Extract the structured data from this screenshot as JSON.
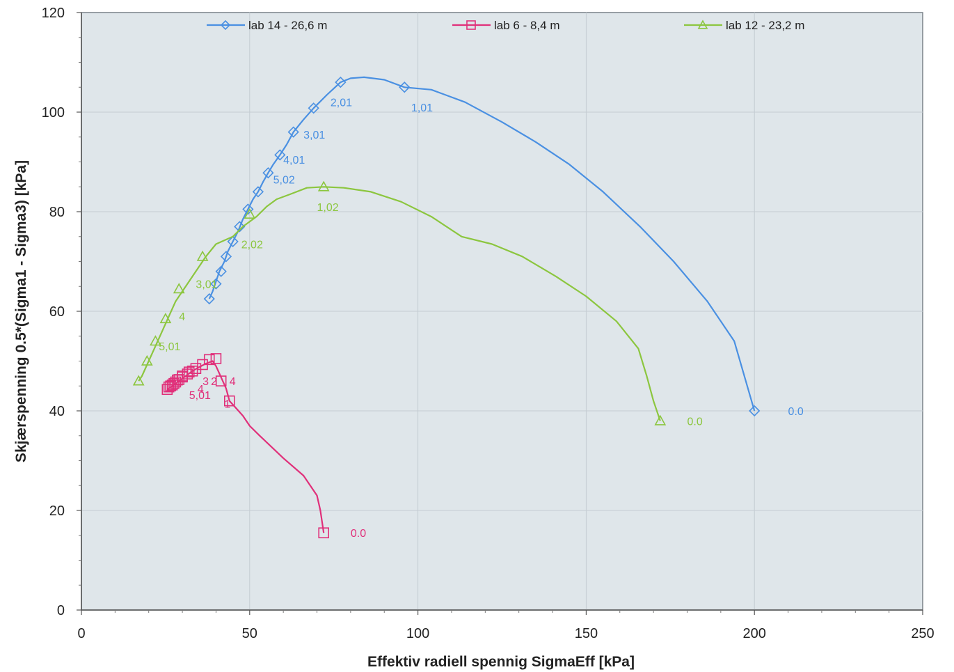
{
  "chart_data": {
    "type": "line",
    "title": "",
    "xlabel": "Effektiv radiell spennig SigmaEff [kPa]",
    "ylabel": "Skjærspenning 0.5*(Sigma1 - Sigma3) [kPa]",
    "xlim": [
      0,
      250
    ],
    "ylim": [
      0,
      120
    ],
    "xticks": [
      0,
      50,
      100,
      150,
      200,
      250
    ],
    "yticks": [
      0,
      20,
      40,
      60,
      80,
      100,
      120
    ],
    "xtick_labels": [
      "0",
      "50",
      "100",
      "150",
      "200",
      "250"
    ],
    "ytick_labels": [
      "0",
      "20",
      "40",
      "60",
      "80",
      "100",
      "120"
    ],
    "grid": true,
    "legend": "top",
    "plot_background": "#dfe6ea",
    "series": [
      {
        "name": "lab 14 - 26,6 m",
        "color": "#4a90e2",
        "marker": "diamond",
        "line": [
          [
            200,
            40
          ],
          [
            194,
            54
          ],
          [
            186,
            62
          ],
          [
            176,
            70
          ],
          [
            166,
            77
          ],
          [
            155,
            84
          ],
          [
            145,
            89.5
          ],
          [
            135,
            94
          ],
          [
            125,
            98
          ],
          [
            114,
            102
          ],
          [
            104,
            104.5
          ],
          [
            96,
            105
          ],
          [
            90,
            106.5
          ],
          [
            84,
            107
          ],
          [
            80,
            106.8
          ],
          [
            77,
            106
          ],
          [
            73,
            103.5
          ],
          [
            69,
            100.8
          ],
          [
            66,
            98.5
          ],
          [
            63,
            96
          ],
          [
            61,
            93.5
          ],
          [
            59,
            91.4
          ],
          [
            57,
            89.5
          ],
          [
            55.5,
            87.8
          ],
          [
            54,
            86
          ],
          [
            52.5,
            84
          ],
          [
            51,
            82.5
          ],
          [
            49.5,
            80.5
          ],
          [
            48,
            78.5
          ],
          [
            46.5,
            76
          ],
          [
            45,
            74
          ],
          [
            43.5,
            72
          ],
          [
            42.5,
            70
          ],
          [
            41,
            68
          ],
          [
            40,
            66
          ],
          [
            39,
            64
          ],
          [
            38,
            62.5
          ]
        ],
        "markers": [
          [
            200,
            40
          ],
          [
            96,
            105
          ],
          [
            77,
            106
          ],
          [
            69,
            100.8
          ],
          [
            63,
            96
          ],
          [
            59,
            91.4
          ],
          [
            55.5,
            87.8
          ],
          [
            52.5,
            84
          ],
          [
            49.5,
            80.5
          ],
          [
            47,
            77
          ],
          [
            45,
            74
          ],
          [
            43,
            71
          ],
          [
            41.5,
            68
          ],
          [
            40,
            65.5
          ],
          [
            38,
            62.5
          ]
        ],
        "labels": [
          {
            "text": "0.0",
            "x": 210,
            "y": 40
          },
          {
            "text": "1,01",
            "x": 98,
            "y": 101
          },
          {
            "text": "2,01",
            "x": 74,
            "y": 102
          },
          {
            "text": "3,01",
            "x": 66,
            "y": 95.5
          },
          {
            "text": "4,01",
            "x": 60,
            "y": 90.5
          },
          {
            "text": "5,02",
            "x": 57,
            "y": 86.5
          }
        ]
      },
      {
        "name": "lab 6 - 8,4 m",
        "color": "#e0307a",
        "marker": "square",
        "line": [
          [
            72,
            15.5
          ],
          [
            71,
            20
          ],
          [
            70,
            23
          ],
          [
            66,
            27
          ],
          [
            60,
            30.5
          ],
          [
            53,
            35
          ],
          [
            50,
            37
          ],
          [
            48,
            39
          ],
          [
            46,
            40.5
          ],
          [
            44,
            42
          ],
          [
            43,
            44.5
          ],
          [
            42,
            46
          ],
          [
            41,
            47.5
          ],
          [
            40,
            49
          ],
          [
            39,
            50
          ],
          [
            37,
            49.5
          ],
          [
            35,
            48.8
          ],
          [
            33,
            48
          ],
          [
            31,
            47
          ],
          [
            29,
            46
          ],
          [
            27,
            45
          ],
          [
            26,
            44.5
          ],
          [
            25.5,
            44.2
          ]
        ],
        "markers": [
          [
            72,
            15.5
          ],
          [
            44,
            42
          ],
          [
            41.5,
            46
          ],
          [
            40,
            50.5
          ],
          [
            38,
            50.3
          ],
          [
            36,
            49.3
          ],
          [
            34,
            48.5
          ],
          [
            32,
            47.8
          ],
          [
            30,
            47
          ],
          [
            28.5,
            46.2
          ],
          [
            27.5,
            45.5
          ],
          [
            26.5,
            45
          ],
          [
            25.5,
            44.3
          ],
          [
            26,
            44.8
          ],
          [
            27,
            45.2
          ],
          [
            28,
            45.8
          ],
          [
            29,
            46.3
          ],
          [
            30,
            46.8
          ],
          [
            31.5,
            47.4
          ],
          [
            33,
            48
          ]
        ],
        "labels": [
          {
            "text": "0.0",
            "x": 80,
            "y": 15.5
          },
          {
            "text": "5,01",
            "x": 32,
            "y": 43.2
          },
          {
            "text": "4",
            "x": 34.5,
            "y": 44.5
          },
          {
            "text": "3",
            "x": 36,
            "y": 46
          },
          {
            "text": "2",
            "x": 38.5,
            "y": 46
          },
          {
            "text": "4",
            "x": 44,
            "y": 46
          },
          {
            "text": "1",
            "x": 42.5,
            "y": 41.5
          }
        ]
      },
      {
        "name": "lab 12 - 23,2 m",
        "color": "#8cc63f",
        "marker": "triangle",
        "line": [
          [
            172,
            38
          ],
          [
            170,
            42
          ],
          [
            168,
            47
          ],
          [
            165.5,
            52.5
          ],
          [
            159,
            58
          ],
          [
            150,
            63
          ],
          [
            141,
            67
          ],
          [
            131,
            71
          ],
          [
            122,
            73.5
          ],
          [
            113,
            75
          ],
          [
            104,
            79
          ],
          [
            95,
            82
          ],
          [
            86,
            84
          ],
          [
            78,
            84.8
          ],
          [
            72,
            85
          ],
          [
            67,
            84.8
          ],
          [
            62,
            83.5
          ],
          [
            58,
            82.5
          ],
          [
            55,
            81
          ],
          [
            52,
            79
          ],
          [
            48,
            77
          ],
          [
            45,
            75
          ],
          [
            40,
            73.5
          ],
          [
            37,
            71
          ],
          [
            34,
            68
          ],
          [
            31,
            65
          ],
          [
            28,
            62
          ],
          [
            26,
            59
          ],
          [
            24,
            56
          ],
          [
            22,
            53
          ],
          [
            20,
            50
          ],
          [
            18,
            47
          ],
          [
            17,
            46
          ]
        ],
        "markers": [
          [
            172,
            38
          ],
          [
            72,
            85
          ],
          [
            50,
            79.5
          ],
          [
            36,
            71
          ],
          [
            29,
            64.5
          ],
          [
            25,
            58.5
          ],
          [
            22,
            54
          ],
          [
            19.5,
            50
          ],
          [
            17,
            46
          ]
        ],
        "labels": [
          {
            "text": "0.0",
            "x": 180,
            "y": 38
          },
          {
            "text": "1,02",
            "x": 70,
            "y": 81
          },
          {
            "text": "2,02",
            "x": 47.5,
            "y": 73.5
          },
          {
            "text": "3,01",
            "x": 34,
            "y": 65.5
          },
          {
            "text": "4",
            "x": 29,
            "y": 59
          },
          {
            "text": "5,01",
            "x": 23,
            "y": 53
          }
        ]
      }
    ]
  }
}
